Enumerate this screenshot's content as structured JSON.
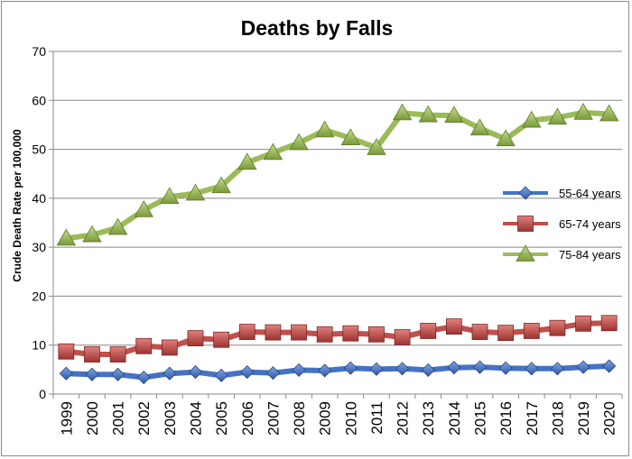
{
  "chart_data": {
    "type": "line",
    "title": "Deaths by Falls",
    "xlabel": "",
    "ylabel": "Crude Death Rate per 100,000",
    "ylim": [
      0,
      70
    ],
    "yticks": [
      0,
      10,
      20,
      30,
      40,
      50,
      60,
      70
    ],
    "grid": "horizontal",
    "legend_position": "right",
    "categories": [
      "1999",
      "2000",
      "2001",
      "2002",
      "2003",
      "2004",
      "2005",
      "2006",
      "2007",
      "2008",
      "2009",
      "2010",
      "2011",
      "2012",
      "2013",
      "2014",
      "2015",
      "2016",
      "2017",
      "2018",
      "2019",
      "2020"
    ],
    "series": [
      {
        "name": "55-64 years",
        "color": "#4472c4",
        "marker": "diamond",
        "values": [
          4.2,
          4.0,
          4.0,
          3.4,
          4.2,
          4.5,
          3.8,
          4.5,
          4.3,
          4.9,
          4.8,
          5.3,
          5.1,
          5.2,
          4.9,
          5.4,
          5.5,
          5.3,
          5.2,
          5.2,
          5.5,
          5.7
        ]
      },
      {
        "name": "65-74 years",
        "color": "#c0504d",
        "marker": "square",
        "values": [
          8.7,
          8.1,
          8.1,
          9.8,
          9.5,
          11.4,
          11.1,
          12.7,
          12.6,
          12.6,
          12.2,
          12.4,
          12.2,
          11.6,
          12.9,
          13.8,
          12.7,
          12.5,
          12.9,
          13.5,
          14.4,
          14.5
        ]
      },
      {
        "name": "75-84 years",
        "color": "#9bbb59",
        "marker": "triangle",
        "values": [
          31.8,
          32.5,
          34.0,
          37.6,
          40.3,
          41.0,
          42.5,
          47.3,
          49.3,
          51.3,
          53.9,
          52.3,
          50.3,
          57.4,
          57.0,
          56.9,
          54.3,
          52.1,
          55.9,
          56.5,
          57.5,
          57.2
        ]
      }
    ]
  }
}
